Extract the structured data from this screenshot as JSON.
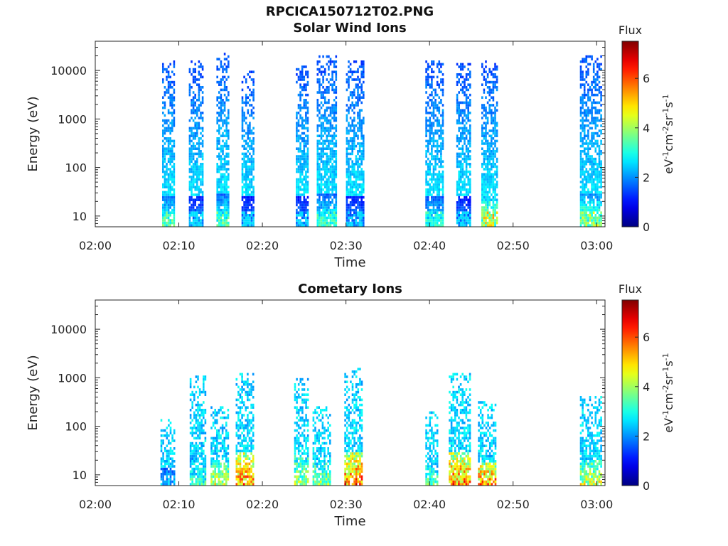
{
  "figure": {
    "title_line1": "RPCICA150712T02.PNG",
    "title_line2": "Solar Wind Ions"
  },
  "colormap": "jet",
  "chart_data": [
    {
      "type": "heatmap",
      "title": "Solar Wind Ions",
      "xlabel": "Time",
      "ylabel": "Energy (eV)",
      "x_ticks": [
        "02:00",
        "02:10",
        "02:20",
        "02:30",
        "02:40",
        "02:50",
        "03:00"
      ],
      "x_range_min": [
        0,
        61
      ],
      "y_ticks": [
        "10",
        "100",
        "1000",
        "10000"
      ],
      "y_scale": "log",
      "y_range_eV": [
        6,
        40000
      ],
      "colorbar": {
        "label": "Flux",
        "unit_line": "eV-1cm-2sr-1s-1",
        "ticks": [
          "0",
          "2",
          "4",
          "6"
        ],
        "range": [
          0,
          7.5
        ]
      },
      "bursts": [
        {
          "start_min": 8.0,
          "end_min": 9.5,
          "e_max": 15000,
          "peak_flux": 4.0
        },
        {
          "start_min": 11.2,
          "end_min": 12.8,
          "e_max": 15000,
          "peak_flux": 2.6
        },
        {
          "start_min": 14.5,
          "end_min": 16.0,
          "e_max": 22000,
          "peak_flux": 4.0
        },
        {
          "start_min": 17.5,
          "end_min": 19.0,
          "e_max": 9000,
          "peak_flux": 2.5
        },
        {
          "start_min": 24.0,
          "end_min": 25.5,
          "e_max": 12000,
          "peak_flux": 2.5
        },
        {
          "start_min": 26.5,
          "end_min": 28.8,
          "e_max": 20000,
          "peak_flux": 3.8
        },
        {
          "start_min": 30.0,
          "end_min": 32.0,
          "e_max": 15000,
          "peak_flux": 2.5
        },
        {
          "start_min": 39.5,
          "end_min": 41.5,
          "e_max": 16000,
          "peak_flux": 3.5
        },
        {
          "start_min": 43.2,
          "end_min": 44.8,
          "e_max": 13000,
          "peak_flux": 2.5
        },
        {
          "start_min": 46.2,
          "end_min": 48.0,
          "e_max": 16000,
          "peak_flux": 5.5
        },
        {
          "start_min": 58.0,
          "end_min": 60.5,
          "e_max": 20000,
          "peak_flux": 4.8
        }
      ]
    },
    {
      "type": "heatmap",
      "title": "Cometary Ions",
      "xlabel": "Time",
      "ylabel": "Energy (eV)",
      "x_ticks": [
        "02:00",
        "02:10",
        "02:20",
        "02:30",
        "02:40",
        "02:50",
        "03:00"
      ],
      "x_range_min": [
        0,
        61
      ],
      "y_ticks": [
        "10",
        "100",
        "1000",
        "10000"
      ],
      "y_scale": "log",
      "y_range_eV": [
        6,
        40000
      ],
      "colorbar": {
        "label": "Flux",
        "unit_line": "eV-1cm-2sr-1s-1",
        "ticks": [
          "0",
          "2",
          "4",
          "6"
        ],
        "range": [
          0,
          7.5
        ]
      },
      "bursts": [
        {
          "start_min": 7.8,
          "end_min": 9.5,
          "e_max": 150,
          "peak_flux": 3.0
        },
        {
          "start_min": 11.3,
          "end_min": 13.2,
          "e_max": 1000,
          "peak_flux": 4.0
        },
        {
          "start_min": 13.8,
          "end_min": 16.0,
          "e_max": 250,
          "peak_flux": 5.5
        },
        {
          "start_min": 16.8,
          "end_min": 19.0,
          "e_max": 1200,
          "peak_flux": 7.0
        },
        {
          "start_min": 23.8,
          "end_min": 25.5,
          "e_max": 900,
          "peak_flux": 5.0
        },
        {
          "start_min": 26.0,
          "end_min": 28.0,
          "e_max": 250,
          "peak_flux": 5.0
        },
        {
          "start_min": 29.8,
          "end_min": 32.0,
          "e_max": 1500,
          "peak_flux": 7.2
        },
        {
          "start_min": 39.5,
          "end_min": 41.0,
          "e_max": 200,
          "peak_flux": 4.5
        },
        {
          "start_min": 42.3,
          "end_min": 44.8,
          "e_max": 1200,
          "peak_flux": 7.0
        },
        {
          "start_min": 45.8,
          "end_min": 48.0,
          "e_max": 300,
          "peak_flux": 7.0
        },
        {
          "start_min": 58.0,
          "end_min": 60.5,
          "e_max": 400,
          "peak_flux": 5.5
        }
      ]
    }
  ]
}
